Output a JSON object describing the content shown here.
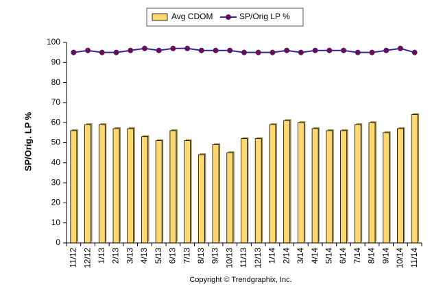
{
  "chart_data": {
    "type": "bar",
    "y_label": "SP/Orig. LP %",
    "copyright": "Copyright © Trendgraphix, Inc.",
    "categories": [
      "11/12",
      "12/12",
      "1/13",
      "2/13",
      "3/13",
      "4/13",
      "5/13",
      "6/13",
      "7/13",
      "8/13",
      "9/13",
      "10/13",
      "11/13",
      "12/13",
      "1/14",
      "2/14",
      "3/14",
      "4/14",
      "5/14",
      "6/14",
      "7/14",
      "8/14",
      "9/14",
      "10/14",
      "11/14"
    ],
    "series": [
      {
        "name": "Avg CDOM",
        "type": "bar",
        "color": "#fdd870",
        "values": [
          56,
          59,
          59,
          57,
          57,
          53,
          51,
          56,
          51,
          44,
          49,
          45,
          52,
          52,
          59,
          61,
          60,
          57,
          56,
          56,
          59,
          60,
          55,
          57,
          64
        ]
      },
      {
        "name": "SP/Orig LP %",
        "type": "line",
        "color": "#3a1fa0",
        "marker_color": "#7a0a3a",
        "values": [
          95,
          96,
          95,
          95,
          96,
          97,
          96,
          97,
          97,
          96,
          96,
          96,
          95,
          95,
          95,
          96,
          95,
          96,
          96,
          96,
          95,
          95,
          96,
          97,
          95
        ]
      }
    ],
    "ylim": [
      0,
      100
    ],
    "yticks": [
      0,
      10,
      20,
      30,
      40,
      50,
      60,
      70,
      80,
      90,
      100
    ],
    "grid": false
  }
}
